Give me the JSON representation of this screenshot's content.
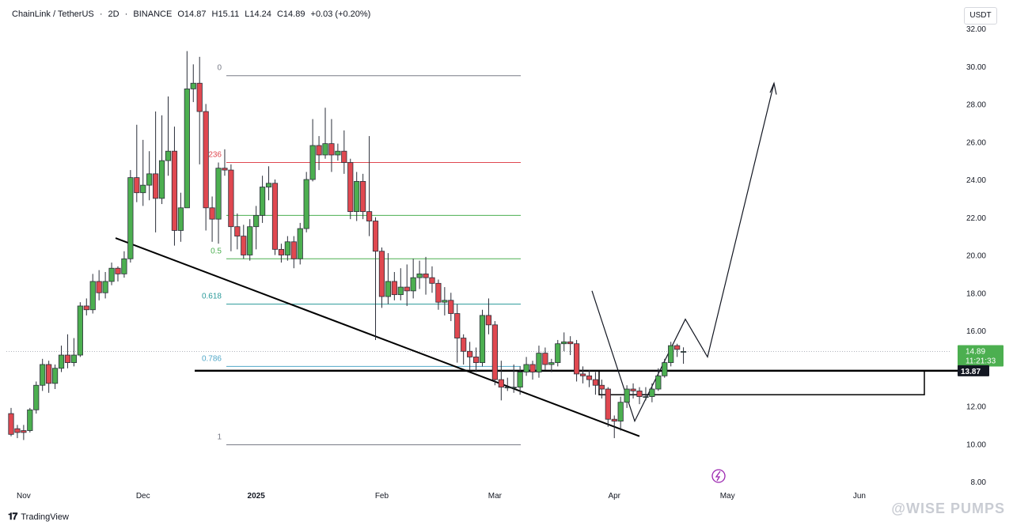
{
  "header": {
    "symbol": "ChainLink / TetherUS",
    "interval": "2D",
    "exchange": "BINANCE",
    "ohlc": [
      "O14.87",
      "H15.11",
      "L14.24",
      "C14.89",
      "+0.03 (+0.20%)"
    ]
  },
  "currency_button": "USDT",
  "footer": {
    "brand": "TradingView",
    "watermark": "@WISE PUMPS"
  },
  "colors": {
    "up": "#4caf50",
    "down": "#e04850",
    "text": "#131722",
    "axis": "#787b86"
  },
  "chart_data": {
    "type": "candlestick",
    "ylim": [
      8,
      32
    ],
    "y_ticks": [
      8,
      10,
      12,
      14,
      16,
      18,
      20,
      22,
      24,
      26,
      28,
      30,
      32
    ],
    "y_tick_labels": [
      "8.00",
      "10.00",
      "12.00",
      "14.00",
      "16.00",
      "18.00",
      "20.00",
      "22.00",
      "24.00",
      "26.00",
      "28.00",
      "30.00",
      "32.00"
    ],
    "x_index_range": [
      0,
      153
    ],
    "x_labels": [
      {
        "i": 2,
        "label": "Nov"
      },
      {
        "i": 21,
        "label": "Dec"
      },
      {
        "i": 39,
        "label": "2025"
      },
      {
        "i": 59,
        "label": "Feb"
      },
      {
        "i": 77,
        "label": "Mar"
      },
      {
        "i": 96,
        "label": "Apr"
      },
      {
        "i": 114,
        "label": "May"
      },
      {
        "i": 135,
        "label": "Jun"
      }
    ],
    "candles": [
      [
        11.6,
        10.5,
        11.9,
        10.4
      ],
      [
        10.8,
        10.6,
        11.0,
        10.3
      ],
      [
        10.7,
        10.6,
        11.0,
        10.2
      ],
      [
        10.7,
        11.8,
        11.9,
        10.6
      ],
      [
        11.8,
        13.1,
        13.3,
        11.6
      ],
      [
        13.1,
        14.2,
        14.5,
        12.8
      ],
      [
        14.2,
        13.2,
        14.4,
        12.7
      ],
      [
        13.2,
        14.0,
        14.2,
        12.9
      ],
      [
        14.0,
        14.7,
        15.2,
        13.8
      ],
      [
        14.7,
        14.3,
        15.8,
        14.0
      ],
      [
        14.3,
        14.7,
        15.6,
        14.1
      ],
      [
        14.7,
        17.3,
        17.5,
        14.6
      ],
      [
        17.3,
        17.1,
        17.7,
        16.8
      ],
      [
        17.1,
        18.6,
        19.0,
        16.9
      ],
      [
        18.6,
        18.0,
        19.2,
        17.6
      ],
      [
        18.0,
        18.6,
        19.1,
        17.7
      ],
      [
        18.6,
        19.3,
        19.6,
        18.4
      ],
      [
        19.3,
        19.0,
        19.4,
        18.6
      ],
      [
        19.0,
        19.8,
        20.2,
        18.8
      ],
      [
        19.8,
        24.1,
        24.5,
        19.6
      ],
      [
        24.1,
        23.3,
        26.9,
        22.8
      ],
      [
        23.3,
        23.7,
        26.1,
        22.6
      ],
      [
        23.7,
        24.3,
        25.5,
        22.9
      ],
      [
        24.3,
        23.0,
        27.6,
        21.2
      ],
      [
        23.0,
        25.0,
        27.4,
        22.7
      ],
      [
        25.0,
        25.5,
        28.4,
        24.2
      ],
      [
        25.5,
        21.3,
        26.8,
        20.5
      ],
      [
        21.3,
        22.5,
        23.3,
        20.7
      ],
      [
        22.5,
        28.8,
        30.8,
        24.1
      ],
      [
        28.8,
        29.1,
        30.1,
        28.1
      ],
      [
        29.1,
        27.6,
        30.5,
        24.8
      ],
      [
        27.6,
        22.5,
        28.0,
        21.3
      ],
      [
        22.5,
        21.9,
        23.1,
        20.7
      ],
      [
        21.9,
        24.6,
        24.9,
        20.6
      ],
      [
        24.6,
        24.5,
        25.6,
        24.2
      ],
      [
        24.5,
        21.5,
        24.8,
        20.2
      ],
      [
        21.5,
        21.0,
        22.2,
        20.3
      ],
      [
        21.0,
        20.0,
        21.6,
        19.8
      ],
      [
        20.0,
        21.5,
        21.9,
        19.7
      ],
      [
        21.5,
        22.1,
        22.6,
        20.3
      ],
      [
        22.1,
        23.6,
        24.2,
        21.7
      ],
      [
        23.6,
        23.8,
        24.7,
        22.9
      ],
      [
        23.8,
        20.3,
        24.0,
        20.0
      ],
      [
        20.3,
        20.0,
        20.6,
        19.6
      ],
      [
        20.0,
        20.7,
        21.0,
        19.7
      ],
      [
        20.7,
        19.8,
        21.0,
        19.3
      ],
      [
        19.8,
        21.4,
        21.7,
        19.5
      ],
      [
        21.4,
        24.0,
        24.4,
        21.2
      ],
      [
        24.0,
        25.8,
        27.2,
        23.9
      ],
      [
        25.8,
        25.3,
        26.3,
        24.5
      ],
      [
        25.3,
        25.9,
        27.8,
        25.1
      ],
      [
        25.9,
        25.3,
        27.2,
        24.4
      ],
      [
        25.3,
        25.5,
        25.9,
        25.0
      ],
      [
        25.5,
        24.9,
        26.6,
        24.3
      ],
      [
        24.9,
        22.3,
        25.1,
        21.9
      ],
      [
        22.3,
        23.9,
        24.4,
        21.8
      ],
      [
        23.9,
        22.3,
        24.3,
        21.9
      ],
      [
        22.3,
        21.8,
        26.3,
        21.0
      ],
      [
        21.8,
        20.2,
        22.0,
        15.5
      ],
      [
        20.2,
        17.8,
        20.4,
        17.2
      ],
      [
        17.8,
        18.6,
        20.1,
        17.4
      ],
      [
        18.6,
        17.9,
        19.1,
        17.6
      ],
      [
        17.9,
        18.3,
        19.3,
        17.6
      ],
      [
        18.3,
        18.1,
        19.5,
        17.3
      ],
      [
        18.1,
        18.8,
        19.8,
        17.7
      ],
      [
        18.8,
        19.0,
        19.7,
        18.2
      ],
      [
        19.0,
        18.8,
        19.9,
        17.9
      ],
      [
        18.8,
        18.5,
        19.4,
        18.0
      ],
      [
        18.5,
        17.5,
        18.7,
        17.1
      ],
      [
        17.5,
        17.6,
        18.3,
        16.8
      ],
      [
        17.6,
        16.9,
        18.0,
        16.5
      ],
      [
        16.9,
        15.6,
        17.4,
        14.3
      ],
      [
        15.6,
        14.9,
        15.8,
        14.2
      ],
      [
        14.9,
        14.6,
        15.4,
        13.9
      ],
      [
        14.6,
        14.3,
        15.1,
        13.8
      ],
      [
        14.3,
        16.8,
        17.1,
        14.1
      ],
      [
        16.8,
        16.3,
        17.7,
        15.8
      ],
      [
        16.3,
        13.4,
        16.5,
        13.1
      ],
      [
        13.4,
        13.0,
        14.4,
        12.3
      ],
      [
        13.0,
        13.0,
        13.5,
        12.8
      ],
      [
        13.0,
        13.0,
        14.2,
        12.7
      ],
      [
        13.0,
        13.8,
        14.1,
        12.6
      ],
      [
        13.8,
        14.2,
        14.6,
        13.6
      ],
      [
        14.2,
        13.8,
        14.4,
        13.4
      ],
      [
        13.8,
        14.8,
        15.2,
        13.5
      ],
      [
        14.8,
        14.2,
        15.1,
        13.9
      ],
      [
        14.2,
        14.3,
        14.5,
        13.8
      ],
      [
        14.3,
        15.3,
        15.5,
        14.1
      ],
      [
        15.3,
        15.4,
        15.9,
        14.9
      ],
      [
        15.4,
        15.3,
        15.7,
        14.7
      ],
      [
        15.3,
        13.7,
        15.5,
        13.3
      ],
      [
        13.7,
        13.6,
        14.1,
        13.2
      ],
      [
        13.6,
        13.4,
        13.9,
        13.0
      ],
      [
        13.4,
        13.1,
        13.8,
        12.6
      ],
      [
        13.1,
        12.9,
        13.4,
        12.4
      ],
      [
        12.9,
        11.3,
        13.0,
        10.9
      ],
      [
        11.3,
        11.2,
        11.5,
        10.3
      ],
      [
        11.2,
        12.2,
        12.5,
        10.7
      ],
      [
        12.2,
        12.9,
        13.1,
        11.9
      ],
      [
        12.9,
        12.8,
        13.2,
        12.4
      ],
      [
        12.8,
        12.5,
        13.0,
        12.1
      ],
      [
        12.5,
        12.5,
        13.0,
        12.3
      ],
      [
        12.5,
        12.9,
        13.2,
        12.2
      ],
      [
        12.9,
        13.6,
        14.0,
        12.8
      ],
      [
        13.6,
        14.3,
        14.5,
        13.5
      ],
      [
        14.3,
        15.2,
        15.4,
        14.1
      ],
      [
        15.2,
        15.0,
        15.3,
        14.6
      ],
      [
        14.87,
        14.89,
        15.11,
        14.24
      ]
    ],
    "fib_levels": [
      {
        "label": "0",
        "value": 29.5,
        "color": "#787b86"
      },
      {
        "label": "236",
        "value": 24.9,
        "color": "#e04850"
      },
      {
        "label": "",
        "value": 22.1,
        "color": "#4caf50"
      },
      {
        "label": "0.5",
        "value": 19.8,
        "color": "#4caf50"
      },
      {
        "label": "0.618",
        "value": 17.4,
        "color": "#2a9a9a"
      },
      {
        "label": "0.786",
        "value": 14.1,
        "color": "#52a8c8"
      },
      {
        "label": "1",
        "value": 9.95,
        "color": "#787b86"
      }
    ],
    "support_level": 13.87,
    "last_price": {
      "price": "14.89",
      "countdown": "11:21:33"
    },
    "support_label": "13.87"
  }
}
